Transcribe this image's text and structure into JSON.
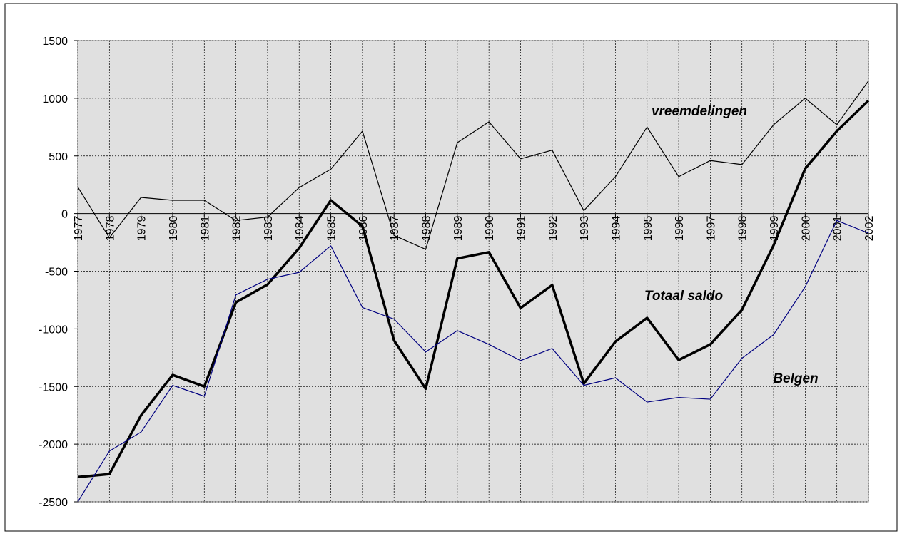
{
  "chart_data": {
    "type": "line",
    "categories": [
      "1977",
      "1978",
      "1979",
      "1980",
      "1981",
      "1982",
      "1983",
      "1984",
      "1985",
      "1986",
      "1987",
      "1988",
      "1989",
      "1990",
      "1991",
      "1992",
      "1993",
      "1994",
      "1995",
      "1996",
      "1997",
      "1998",
      "1999",
      "2000",
      "2001",
      "2002"
    ],
    "series": [
      {
        "name": "vreemdelingen",
        "color": "#000000",
        "width": 1.2,
        "values": [
          230,
          -210,
          140,
          115,
          115,
          -60,
          -30,
          225,
          385,
          715,
          -190,
          -310,
          615,
          795,
          475,
          550,
          25,
          320,
          750,
          320,
          460,
          425,
          770,
          1000,
          770,
          1150
        ]
      },
      {
        "name": "Totaal saldo",
        "color": "#000000",
        "width": 3.5,
        "values": [
          -2285,
          -2260,
          -1750,
          -1400,
          -1500,
          -770,
          -615,
          -300,
          115,
          -110,
          -1100,
          -1520,
          -390,
          -335,
          -820,
          -620,
          -1475,
          -1110,
          -905,
          -1270,
          -1135,
          -835,
          -275,
          390,
          715,
          980
        ]
      },
      {
        "name": "Belgen",
        "color": "#000080",
        "width": 1.2,
        "values": [
          -2500,
          -2060,
          -1895,
          -1490,
          -1585,
          -705,
          -570,
          -510,
          -280,
          -815,
          -915,
          -1200,
          -1015,
          -1135,
          -1275,
          -1170,
          -1490,
          -1425,
          -1635,
          -1595,
          -1610,
          -1255,
          -1050,
          -635,
          -60,
          -170
        ]
      }
    ],
    "ylim": [
      -2500,
      1500
    ],
    "yticks": [
      -2500,
      -2000,
      -1500,
      -1000,
      -500,
      0,
      500,
      1000,
      1500
    ],
    "grid": true
  }
}
